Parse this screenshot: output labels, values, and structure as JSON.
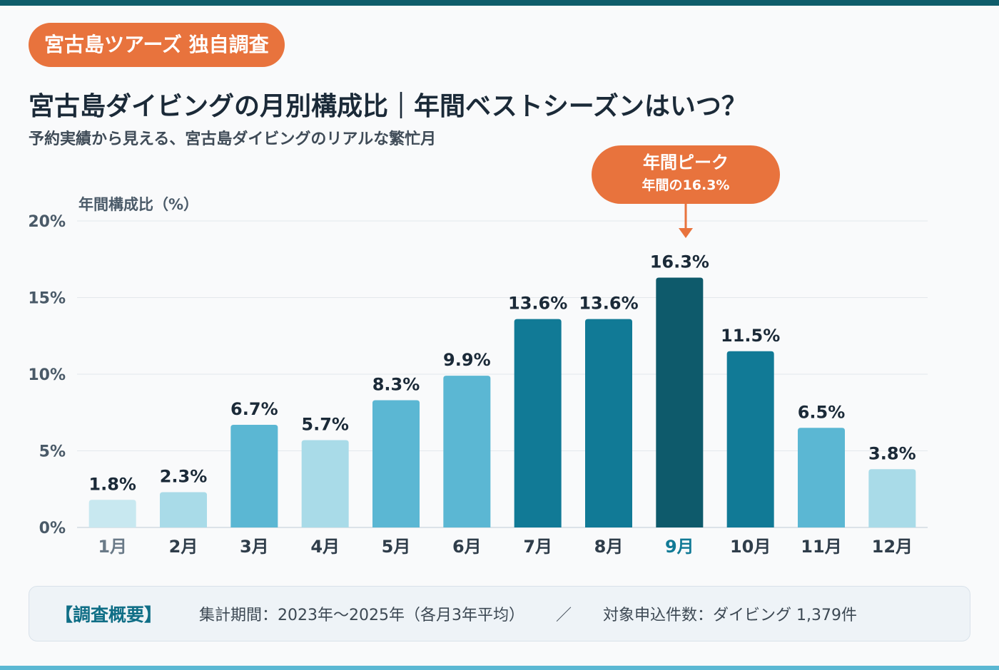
{
  "badge": "宮古島ツアーズ 独自調査",
  "title": "宮古島ダイビングの月別構成比｜年間ベストシーズンはいつ？",
  "subtitle": "予約実績から見える、宮古島ダイビングのリアルな繁忙月",
  "peak_callout": {
    "title": "年間ピーク",
    "value": "年間の16.3%"
  },
  "summary": {
    "label": "【調査概要】",
    "period": "集計期間：2023年～2025年（各月3年平均）",
    "separator": "／",
    "count": "対象申込件数：ダイビング 1,379件"
  },
  "colors": {
    "accent": "#e8733d",
    "peak_bar": "#0e5a6b",
    "high_bar": "#117a96",
    "mid_bar": "#5bb7d3",
    "low_bar": "#a9dbe8",
    "lowest_bar": "#c8e8f0"
  },
  "chart_data": {
    "type": "bar",
    "ylabel": "年間構成比（%）",
    "ylim": [
      0,
      20
    ],
    "yticks": [
      "0%",
      "5%",
      "10%",
      "15%",
      "20%"
    ],
    "categories": [
      "1月",
      "2月",
      "3月",
      "4月",
      "5月",
      "6月",
      "7月",
      "8月",
      "9月",
      "10月",
      "11月",
      "12月"
    ],
    "values": [
      1.8,
      2.3,
      6.7,
      5.7,
      8.3,
      9.9,
      13.6,
      13.6,
      16.3,
      11.5,
      6.5,
      3.8
    ],
    "value_labels": [
      "1.8%",
      "2.3%",
      "6.7%",
      "5.7%",
      "8.3%",
      "9.9%",
      "13.6%",
      "13.6%",
      "16.3%",
      "11.5%",
      "6.5%",
      "3.8%"
    ],
    "bar_colors": [
      "#c8e8f0",
      "#a9dbe8",
      "#5bb7d3",
      "#a9dbe8",
      "#5bb7d3",
      "#5bb7d3",
      "#117a96",
      "#117a96",
      "#0e5a6b",
      "#117a96",
      "#5bb7d3",
      "#a9dbe8"
    ],
    "highlight": "9月",
    "grid": true
  }
}
